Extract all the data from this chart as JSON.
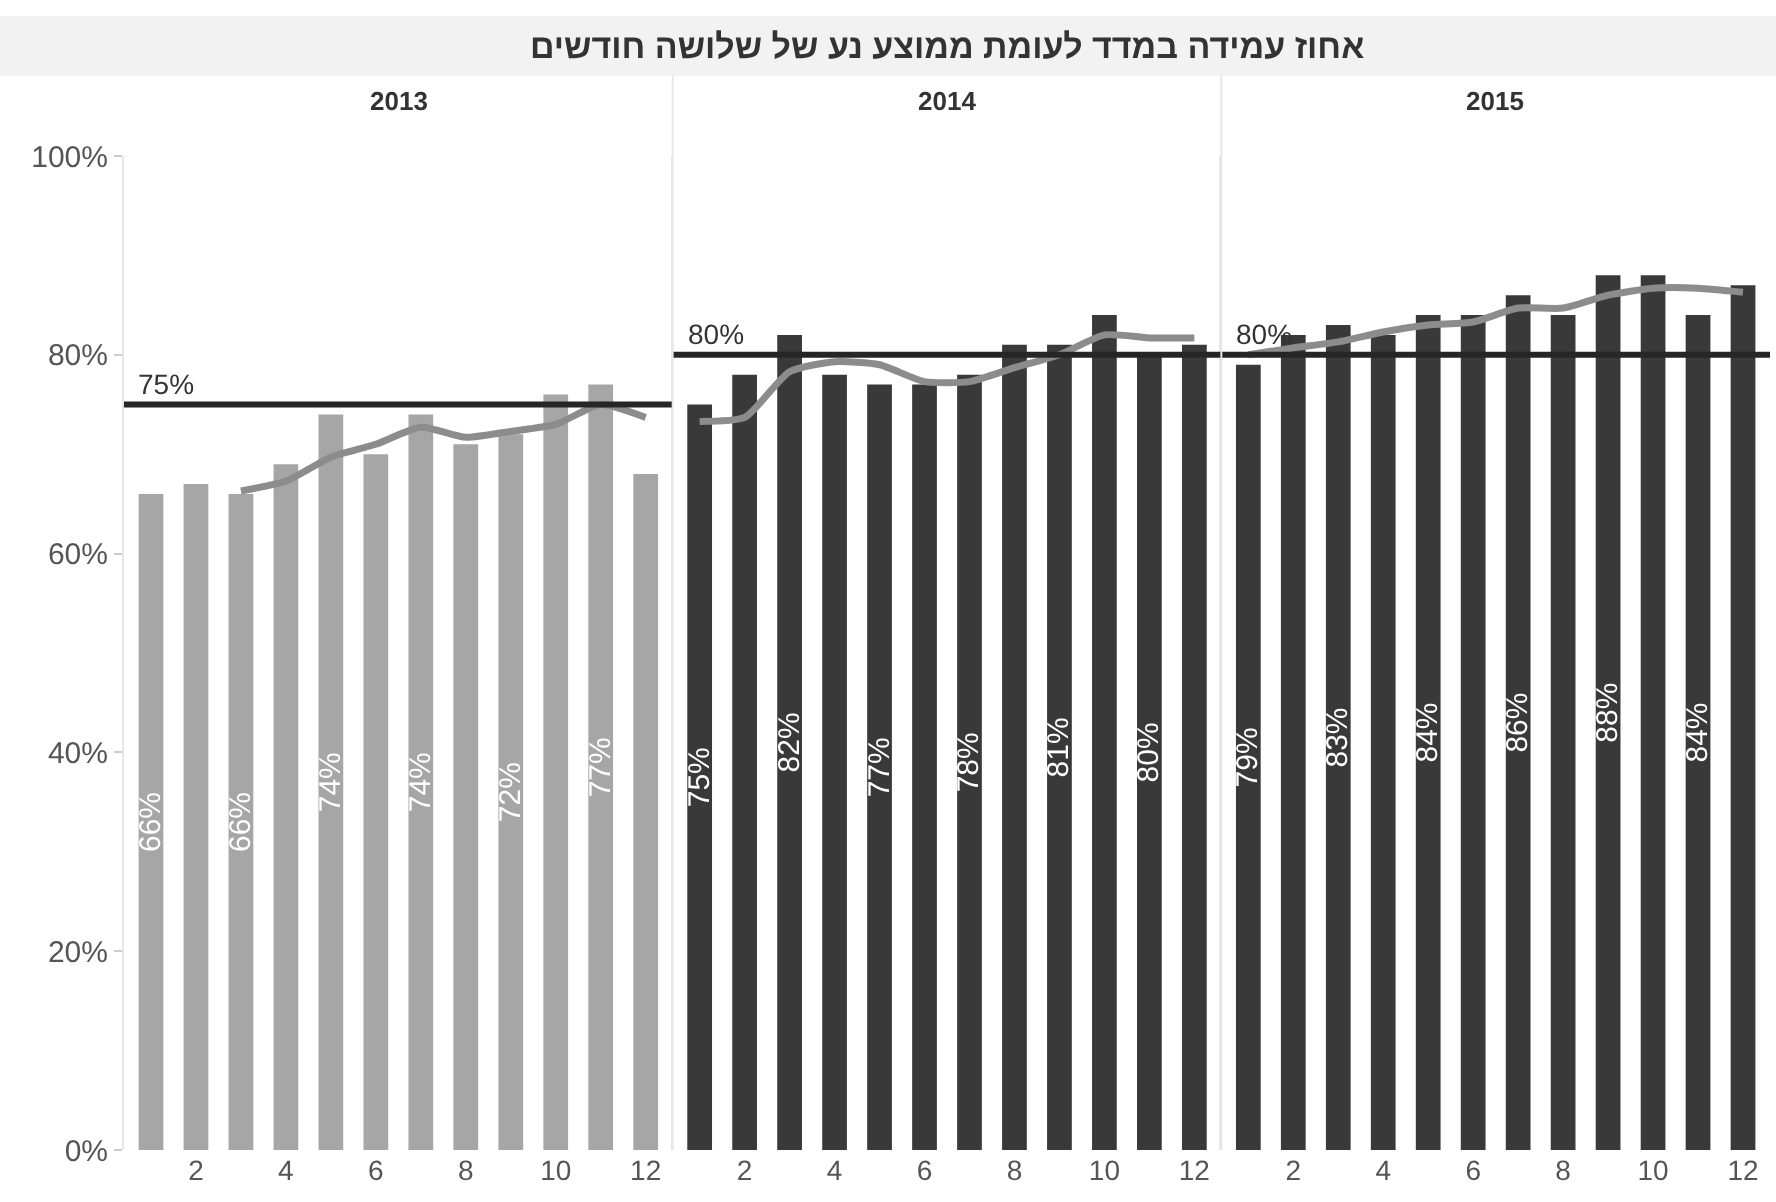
{
  "chart_data": [
    {
      "type": "bar",
      "title": "אחוז עמידה במדד לעומת ממוצע נע של שלושה חודשים",
      "subtitle": "2013",
      "categories": [
        null,
        "2",
        null,
        "4",
        null,
        "6",
        null,
        "8",
        null,
        "10",
        null,
        "12"
      ],
      "ylim": [
        0,
        100
      ],
      "yticks": [
        {
          "value": 0,
          "label": "0%"
        },
        {
          "value": 20,
          "label": "20%"
        },
        {
          "value": 40,
          "label": "40%"
        },
        {
          "value": 60,
          "label": "60%"
        },
        {
          "value": 80,
          "label": "80%"
        },
        {
          "value": 100,
          "label": "100%"
        }
      ],
      "series": [
        {
          "color": "#a6a6a6",
          "values": [
            66,
            67,
            66,
            69,
            74,
            70,
            74,
            71,
            72,
            76,
            77,
            68
          ],
          "value_labels": [
            "66%",
            null,
            "66%",
            null,
            "74%",
            null,
            "74%",
            null,
            "72%",
            null,
            "77%",
            null
          ]
        },
        {
          "type": "line",
          "color": "#8c8c8c",
          "values": [
            null,
            null,
            66.3,
            67.3,
            69.7,
            71,
            72.7,
            71.7,
            72.3,
            73,
            75,
            73.7
          ]
        }
      ],
      "ref_lines": [
        {
          "axis": "y",
          "value": 75,
          "label": "75%",
          "color": "#262626"
        }
      ]
    },
    {
      "type": "bar",
      "subtitle": "2014",
      "categories": [
        null,
        "2",
        null,
        "4",
        null,
        "6",
        null,
        "8",
        null,
        "10",
        null,
        "12"
      ],
      "ylim": [
        0,
        100
      ],
      "tick_labels": "x",
      "series": [
        {
          "color": "#393939",
          "values": [
            75,
            78,
            82,
            78,
            77,
            77,
            78,
            81,
            81,
            84,
            80,
            81
          ],
          "value_labels": [
            "75%",
            null,
            "82%",
            null,
            "77%",
            null,
            "78%",
            null,
            "81%",
            null,
            "80%",
            null
          ]
        },
        {
          "type": "line",
          "color": "#8c8c8c",
          "values": [
            73.3,
            73.7,
            78.3,
            79.3,
            79,
            77.3,
            77.3,
            78.7,
            80,
            82,
            81.7,
            81.7
          ]
        }
      ],
      "ref_lines": [
        {
          "axis": "y",
          "value": 80,
          "label": "80%",
          "color": "#262626"
        }
      ]
    },
    {
      "type": "bar",
      "subtitle": "2015",
      "categories": [
        null,
        "2",
        null,
        "4",
        null,
        "6",
        null,
        "8",
        null,
        "10",
        null,
        "12"
      ],
      "ylim": [
        0,
        100
      ],
      "tick_labels": "x",
      "series": [
        {
          "color": "#393939",
          "values": [
            79,
            82,
            83,
            82,
            84,
            84,
            86,
            84,
            88,
            88,
            84,
            87
          ],
          "value_labels": [
            "79%",
            null,
            "83%",
            null,
            "84%",
            null,
            "86%",
            null,
            "88%",
            null,
            "84%",
            null
          ]
        },
        {
          "type": "line",
          "color": "#8c8c8c",
          "values": [
            80,
            80.7,
            81.3,
            82.3,
            83,
            83.3,
            84.7,
            84.7,
            86,
            86.7,
            86.7,
            86.3
          ]
        }
      ],
      "ref_lines": [
        {
          "axis": "y",
          "value": 80,
          "label": "80%",
          "color": "#262626"
        }
      ]
    }
  ]
}
